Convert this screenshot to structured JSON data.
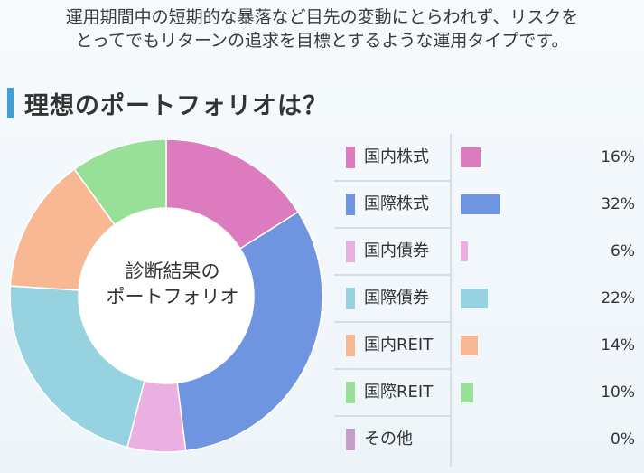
{
  "intro": {
    "line1": "運用期間中の短期的な暴落など目先の変動にとらわれず、リスクを",
    "line2": "とってでもリターンの追求を目標とするような運用タイプです。"
  },
  "section": {
    "title": "理想のポートフォリオは？"
  },
  "center": {
    "line1": "診断結果の",
    "line2": "ポートフォリオ"
  },
  "chart_data": {
    "type": "pie",
    "title": "",
    "categories": [
      "国内株式",
      "国際株式",
      "国内債券",
      "国際債券",
      "国内REIT",
      "国際REIT",
      "その他"
    ],
    "values": [
      16,
      32,
      6,
      22,
      14,
      10,
      0
    ],
    "labels": [
      "16%",
      "32%",
      "6%",
      "22%",
      "14%",
      "10%",
      "0%"
    ],
    "colors": [
      "#dd7bbf",
      "#6f95e0",
      "#eab0e2",
      "#96d2e0",
      "#f8b894",
      "#98df98",
      "#c59fca"
    ],
    "unit": "%",
    "legend": "right"
  }
}
